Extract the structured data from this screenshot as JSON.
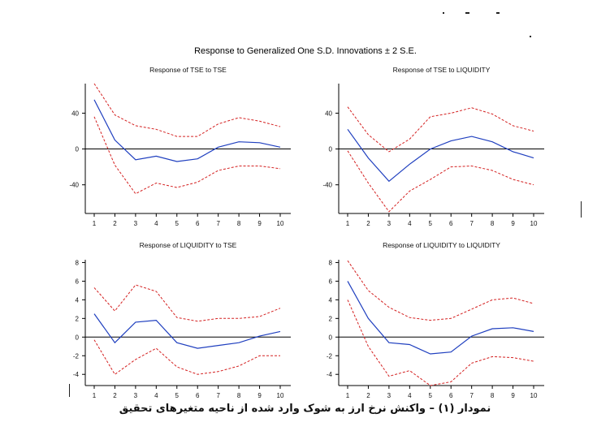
{
  "main_title": "Response to Generalized One S.D. Innovations ± 2 S.E.",
  "caption": "نمودار (۱) – واکنش نرخ ارز به شوک وارد شده از ناحیه متغیرهای تحقیق",
  "colors": {
    "response": "#1f3fbf",
    "band": "#d42020",
    "axis": "#000000",
    "zero": "#000000"
  },
  "chart_data": [
    {
      "type": "line",
      "title": "Response of TSE to TSE",
      "x": [
        1,
        2,
        3,
        4,
        5,
        6,
        7,
        8,
        9,
        10
      ],
      "xticks": [
        1,
        2,
        3,
        4,
        5,
        6,
        7,
        8,
        9,
        10
      ],
      "ylim": [
        -72,
        73
      ],
      "yticks": [
        40,
        0,
        -40
      ],
      "ytick_labels": [
        "40",
        "0",
        "-40"
      ],
      "series": [
        {
          "role": "response",
          "values": [
            55,
            10,
            -12,
            -8,
            -14,
            -11,
            2,
            8,
            7,
            2
          ]
        },
        {
          "role": "upper",
          "values": [
            73,
            38,
            26,
            22,
            14,
            14,
            28,
            35,
            31,
            25
          ]
        },
        {
          "role": "lower",
          "values": [
            36,
            -18,
            -50,
            -38,
            -43,
            -37,
            -24,
            -19,
            -19,
            -22
          ]
        }
      ]
    },
    {
      "type": "line",
      "title": "Response of TSE to LIQUIDITY",
      "x": [
        1,
        2,
        3,
        4,
        5,
        6,
        7,
        8,
        9,
        10
      ],
      "xticks": [
        1,
        2,
        3,
        4,
        5,
        6,
        7,
        8,
        9,
        10
      ],
      "ylim": [
        -72,
        73
      ],
      "yticks": [
        40,
        0,
        -40
      ],
      "ytick_labels": [
        "40",
        "0",
        "-40"
      ],
      "series": [
        {
          "role": "response",
          "values": [
            22,
            -10,
            -36,
            -17,
            0,
            9,
            14,
            8,
            -3,
            -10
          ]
        },
        {
          "role": "upper",
          "values": [
            47,
            16,
            -3,
            11,
            36,
            40,
            46,
            39,
            26,
            20
          ]
        },
        {
          "role": "lower",
          "values": [
            -2,
            -38,
            -70,
            -47,
            -34,
            -20,
            -19,
            -24,
            -34,
            -40
          ]
        }
      ]
    },
    {
      "type": "line",
      "title": "Response of LIQUIDITY to TSE",
      "x": [
        1,
        2,
        3,
        4,
        5,
        6,
        7,
        8,
        9,
        10
      ],
      "xticks": [
        1,
        2,
        3,
        4,
        5,
        6,
        7,
        8,
        9,
        10
      ],
      "ylim": [
        -5.2,
        8.3
      ],
      "yticks": [
        8,
        6,
        4,
        2,
        0,
        -2,
        -4
      ],
      "ytick_labels": [
        "8",
        "6",
        "4",
        "2",
        "0",
        "-2",
        "-4"
      ],
      "series": [
        {
          "role": "response",
          "values": [
            2.5,
            -0.6,
            1.6,
            1.8,
            -0.6,
            -1.2,
            -0.9,
            -0.6,
            0.1,
            0.6
          ]
        },
        {
          "role": "upper",
          "values": [
            5.3,
            2.8,
            5.6,
            4.9,
            2.1,
            1.7,
            2.0,
            2.0,
            2.2,
            3.1
          ]
        },
        {
          "role": "lower",
          "values": [
            -0.3,
            -4.0,
            -2.4,
            -1.2,
            -3.2,
            -4.0,
            -3.7,
            -3.1,
            -2.0,
            -2.0
          ]
        }
      ]
    },
    {
      "type": "line",
      "title": "Response of LIQUIDITY to LIQUIDITY",
      "x": [
        1,
        2,
        3,
        4,
        5,
        6,
        7,
        8,
        9,
        10
      ],
      "xticks": [
        1,
        2,
        3,
        4,
        5,
        6,
        7,
        8,
        9,
        10
      ],
      "ylim": [
        -5.2,
        8.3
      ],
      "yticks": [
        8,
        6,
        4,
        2,
        0,
        -2,
        -4
      ],
      "ytick_labels": [
        "8",
        "6",
        "4",
        "2",
        "0",
        "-2",
        "-4"
      ],
      "series": [
        {
          "role": "response",
          "values": [
            6.0,
            2.0,
            -0.6,
            -0.8,
            -1.8,
            -1.6,
            0.1,
            0.9,
            1.0,
            0.6
          ]
        },
        {
          "role": "upper",
          "values": [
            8.2,
            5.0,
            3.2,
            2.1,
            1.8,
            2.0,
            3.0,
            4.0,
            4.2,
            3.6
          ]
        },
        {
          "role": "lower",
          "values": [
            4.0,
            -1.0,
            -4.2,
            -3.6,
            -5.2,
            -4.8,
            -2.8,
            -2.1,
            -2.2,
            -2.6
          ]
        }
      ]
    }
  ]
}
